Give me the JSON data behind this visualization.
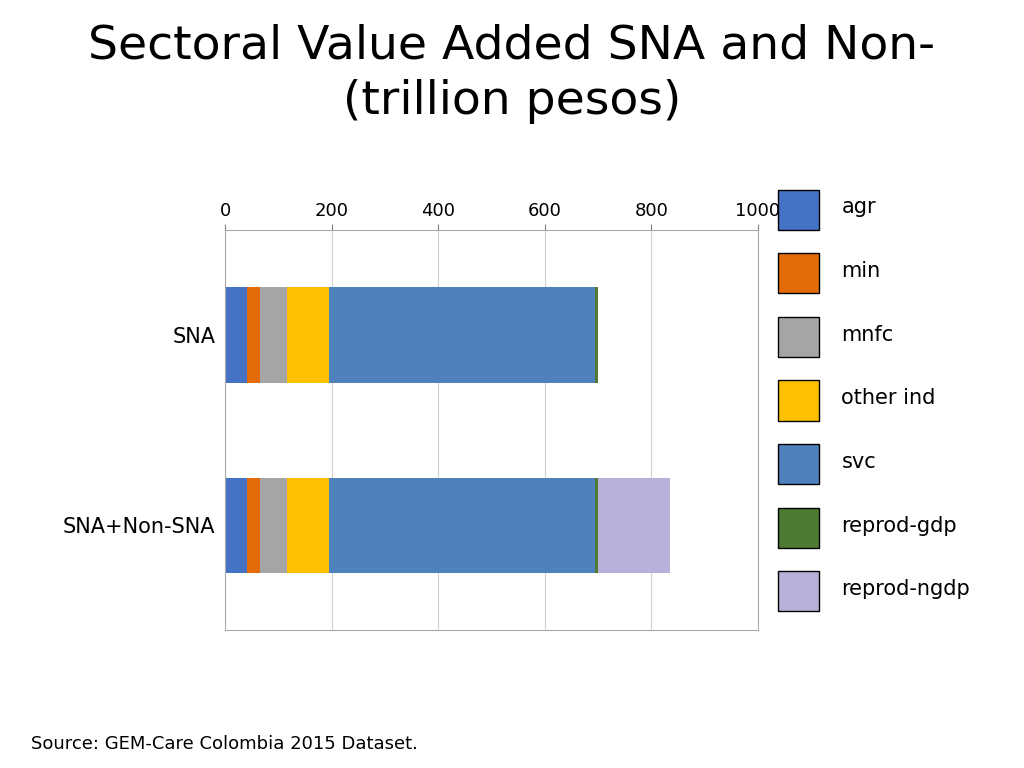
{
  "title": "Sectoral Value Added SNA and Non-\n(trillion pesos)",
  "categories": [
    "SNA+Non-SNA",
    "SNA"
  ],
  "segments": [
    "agr",
    "min",
    "mnfc",
    "other ind",
    "svc",
    "reprod-gdp",
    "reprod-ngdp"
  ],
  "values": {
    "SNA": [
      40,
      25,
      50,
      80,
      500,
      5,
      0
    ],
    "SNA+Non-SNA": [
      40,
      25,
      50,
      80,
      500,
      5,
      135
    ]
  },
  "colors": {
    "agr": "#4472C4",
    "min": "#E36C09",
    "mnfc": "#A5A5A5",
    "other ind": "#FFC000",
    "svc": "#4F81BD",
    "reprod-gdp": "#4E7A34",
    "reprod-ngdp": "#B8B0D8"
  },
  "xlim": [
    0,
    1000
  ],
  "xticks": [
    0,
    200,
    400,
    600,
    800,
    1000
  ],
  "source": "Source: GEM-Care Colombia 2015 Dataset.",
  "title_fontsize": 34,
  "tick_fontsize": 13,
  "label_fontsize": 15,
  "source_fontsize": 13,
  "bar_height": 0.5
}
